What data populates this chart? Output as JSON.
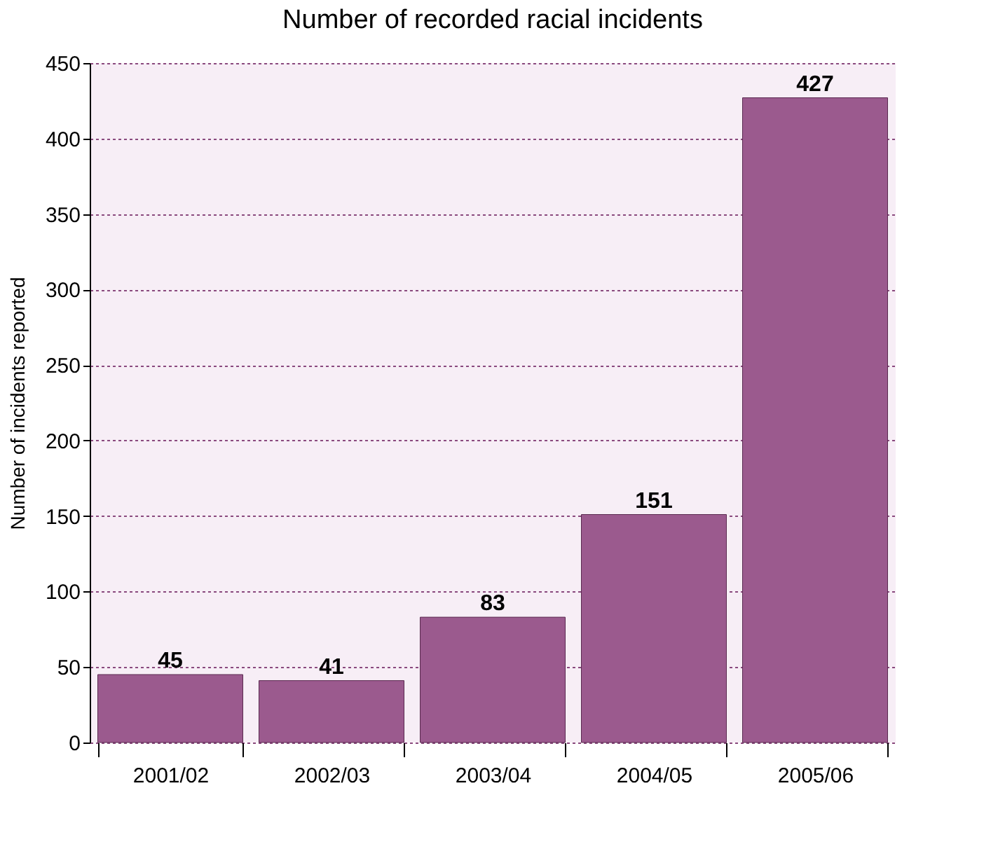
{
  "chart_data": {
    "type": "bar",
    "title": "Number of recorded racial incidents",
    "ylabel": "Number of incidents reported",
    "categories": [
      "2001/02",
      "2002/03",
      "2003/04",
      "2004/05",
      "2005/06"
    ],
    "values": [
      45,
      41,
      83,
      151,
      427
    ],
    "color": "#9b5a8e",
    "ylim": [
      0,
      450
    ],
    "yticks": [
      0,
      50,
      100,
      150,
      200,
      250,
      300,
      350,
      400,
      450
    ],
    "grid": "y",
    "data_labels": true
  }
}
